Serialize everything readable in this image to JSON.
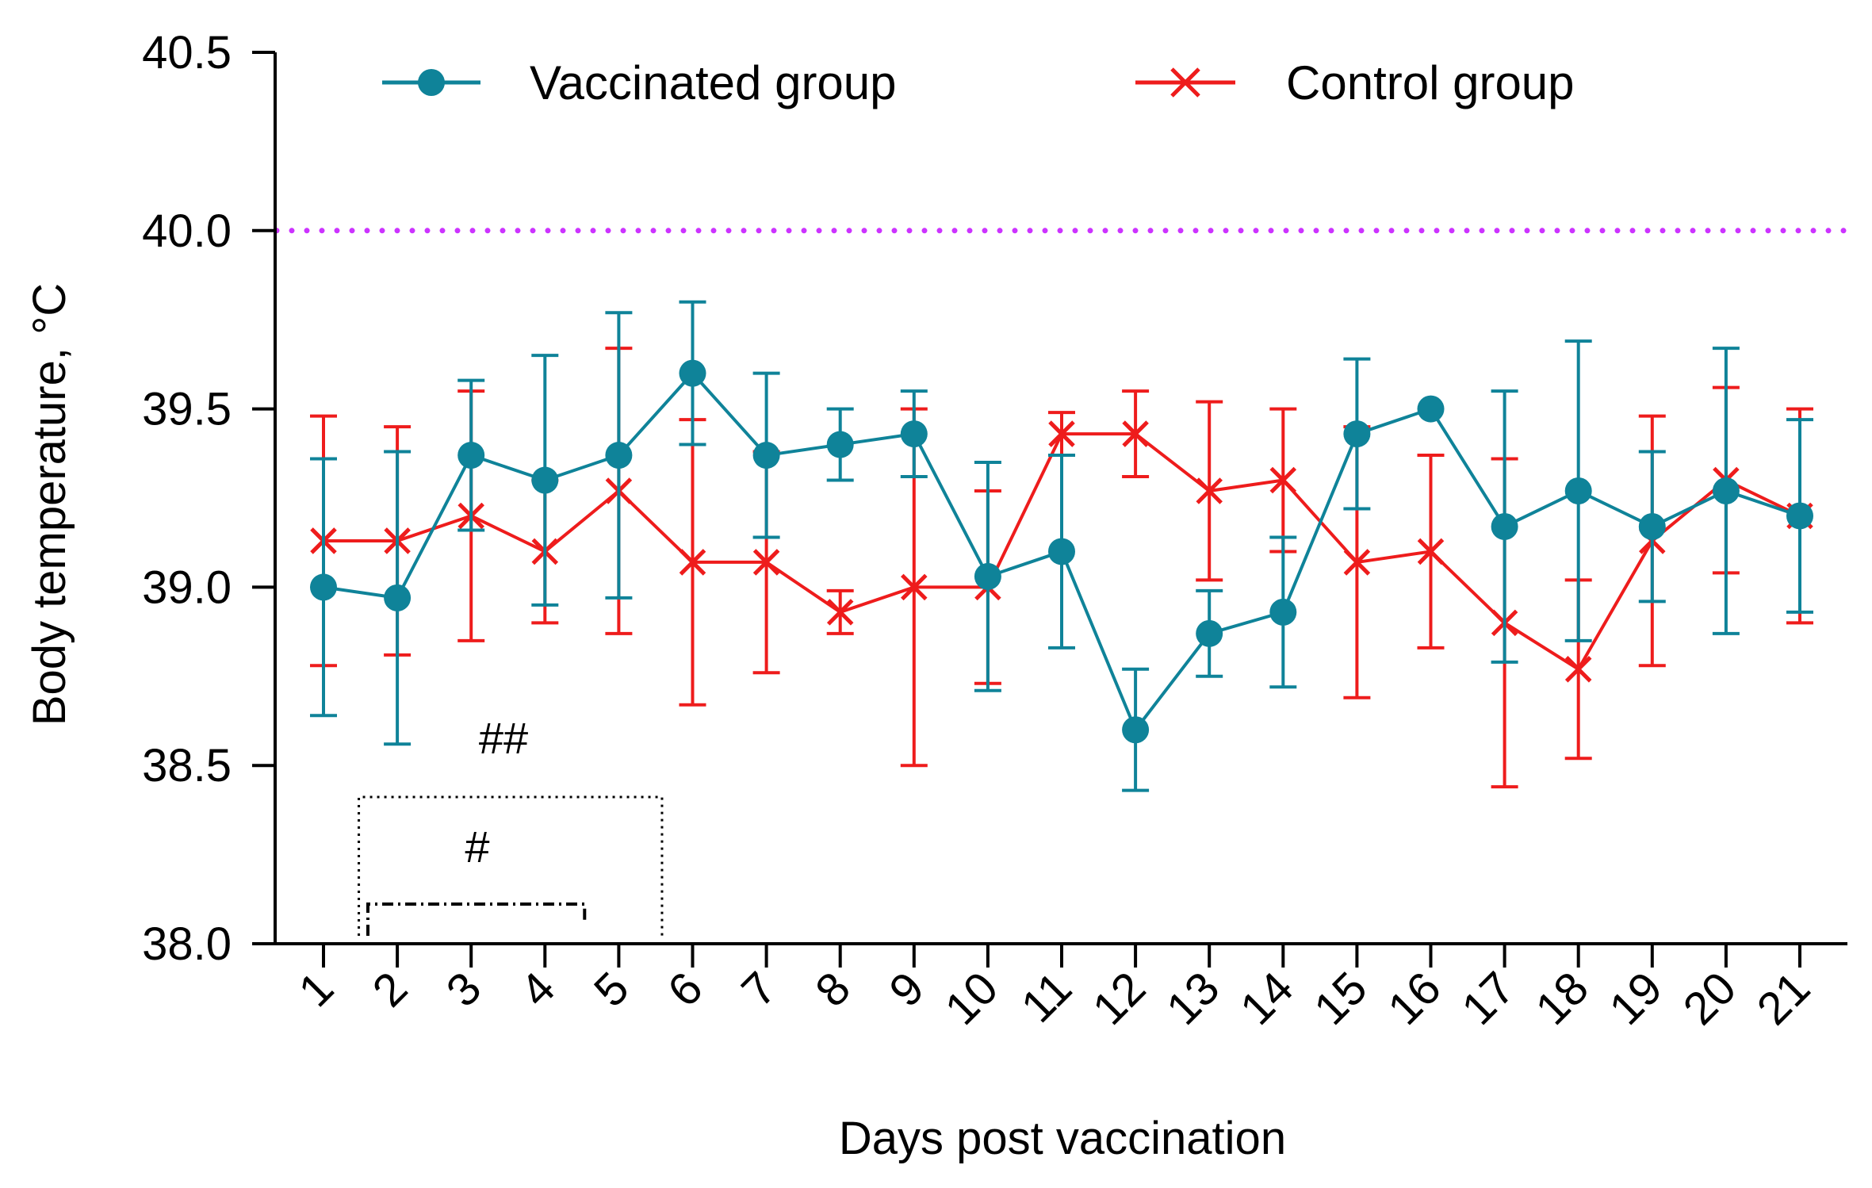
{
  "chart_data": {
    "type": "line",
    "xlabel": "Days post vaccination",
    "ylabel": "Body temperature, °C",
    "categories": [
      "1",
      "2",
      "3",
      "4",
      "5",
      "6",
      "7",
      "8",
      "9",
      "10",
      "11",
      "12",
      "13",
      "14",
      "15",
      "16",
      "17",
      "18",
      "19",
      "20",
      "21"
    ],
    "ylim": [
      38.0,
      40.5
    ],
    "yticks": [
      "38.0",
      "38.5",
      "39.0",
      "39.5",
      "40.0",
      "40.5"
    ],
    "grid": false,
    "legend_position": "top",
    "threshold": {
      "value": 40.0,
      "color": "#cc33ff",
      "style": "dotted"
    },
    "series": [
      {
        "name": "Vaccinated group",
        "color": "#0f8399",
        "marker": "circle",
        "values": [
          39.0,
          38.97,
          39.37,
          39.3,
          39.37,
          39.6,
          39.37,
          39.4,
          39.43,
          39.03,
          39.1,
          38.6,
          38.87,
          38.93,
          39.43,
          39.5,
          39.17,
          39.27,
          39.17,
          39.27,
          39.2
        ],
        "error": [
          0.36,
          0.41,
          0.21,
          0.35,
          0.4,
          0.2,
          0.23,
          0.1,
          0.12,
          0.32,
          0.27,
          0.17,
          0.12,
          0.21,
          0.21,
          0.0,
          0.38,
          0.42,
          0.21,
          0.4,
          0.27
        ]
      },
      {
        "name": "Control group",
        "color": "#ee1c1c",
        "marker": "x",
        "values": [
          39.13,
          39.13,
          39.2,
          39.1,
          39.27,
          39.07,
          39.07,
          38.93,
          39.0,
          39.0,
          39.43,
          39.43,
          39.27,
          39.3,
          39.07,
          39.1,
          38.9,
          38.77,
          39.13,
          39.3,
          39.2
        ],
        "error": [
          0.35,
          0.32,
          0.35,
          0.2,
          0.4,
          0.4,
          0.31,
          0.06,
          0.5,
          0.27,
          0.06,
          0.12,
          0.25,
          0.2,
          0.38,
          0.27,
          0.46,
          0.25,
          0.35,
          0.26,
          0.3
        ]
      }
    ],
    "annotations": [
      {
        "text": "##",
        "x_from": "1",
        "x_to": "5",
        "bracket": "dotted"
      },
      {
        "text": "#",
        "x_from": "2",
        "x_to": "4",
        "bracket": "dash-dot"
      }
    ]
  }
}
